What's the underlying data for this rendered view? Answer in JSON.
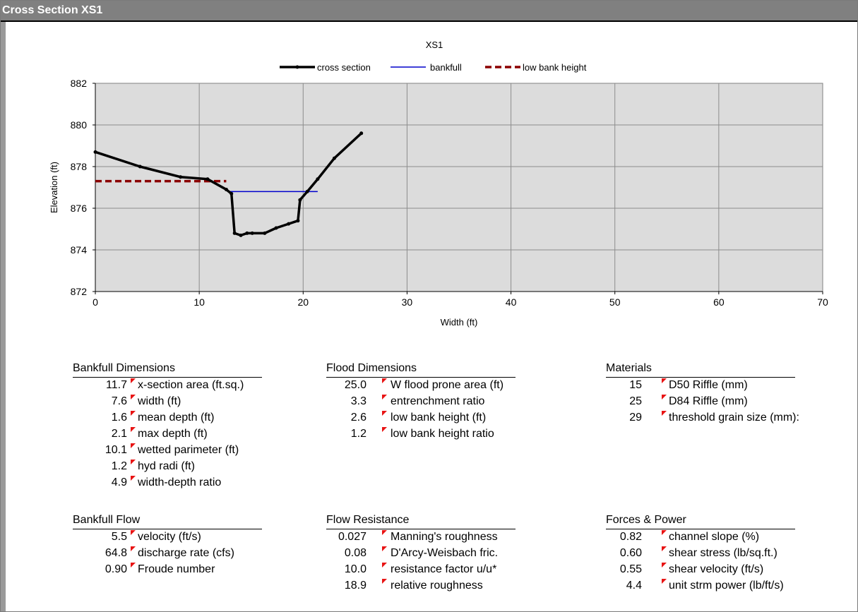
{
  "window": {
    "title": "Cross Section  XS1"
  },
  "chart_data": {
    "type": "line",
    "title": "XS1",
    "xlabel": "Width (ft)",
    "ylabel": "Elevation (ft)",
    "xlim": [
      0,
      70
    ],
    "ylim": [
      872,
      882
    ],
    "xticks": [
      0,
      10,
      20,
      30,
      40,
      50,
      60,
      70
    ],
    "yticks": [
      872,
      874,
      876,
      878,
      880,
      882
    ],
    "grid": true,
    "legend_position": "top",
    "plot_background": "#dcdcdc",
    "series": [
      {
        "name": "cross section",
        "color": "#000000",
        "style": "solid-markers",
        "x": [
          0,
          4.3,
          8.2,
          10.8,
          12.6,
          13.1,
          13.4,
          14.0,
          14.6,
          15.1,
          16.3,
          17.4,
          18.6,
          19.5,
          19.7,
          20.4,
          21.4,
          23.0,
          25.6
        ],
        "y": [
          878.7,
          878.0,
          877.5,
          877.4,
          876.9,
          876.7,
          874.8,
          874.7,
          874.8,
          874.8,
          874.8,
          875.05,
          875.25,
          875.4,
          876.4,
          876.8,
          877.4,
          878.4,
          879.6
        ]
      },
      {
        "name": "bankfull",
        "color": "#0000cc",
        "style": "solid",
        "x": [
          12.9,
          21.4
        ],
        "y": [
          876.8,
          876.8
        ]
      },
      {
        "name": "low bank height",
        "color": "#8b0000",
        "style": "dashed",
        "x": [
          0,
          12.6
        ],
        "y": [
          877.3,
          877.3
        ]
      }
    ]
  },
  "tables": [
    {
      "heading": "Bankfull Dimensions",
      "rows": [
        {
          "value": "11.7",
          "label": "x-section area (ft.sq.)"
        },
        {
          "value": "7.6",
          "label": "width (ft)"
        },
        {
          "value": "1.6",
          "label": "mean depth (ft)"
        },
        {
          "value": "2.1",
          "label": "max depth (ft)"
        },
        {
          "value": "10.1",
          "label": "wetted parimeter (ft)"
        },
        {
          "value": "1.2",
          "label": "hyd radi (ft)"
        },
        {
          "value": "4.9",
          "label": "width-depth ratio"
        }
      ]
    },
    {
      "heading": "Flood Dimensions",
      "rows": [
        {
          "value": "25.0",
          "label": "W flood prone area (ft)"
        },
        {
          "value": "3.3",
          "label": "entrenchment ratio"
        },
        {
          "value": "2.6",
          "label": "low bank height (ft)"
        },
        {
          "value": "1.2",
          "label": "low bank height ratio"
        }
      ]
    },
    {
      "heading": "Materials",
      "rows": [
        {
          "value": "15",
          "label": "D50 Riffle (mm)"
        },
        {
          "value": "25",
          "label": "D84 Riffle (mm)"
        },
        {
          "value": "29",
          "label": "threshold grain size (mm):"
        }
      ]
    },
    {
      "heading": "Bankfull Flow",
      "rows": [
        {
          "value": "5.5",
          "label": "velocity (ft/s)"
        },
        {
          "value": "64.8",
          "label": "discharge rate (cfs)"
        },
        {
          "value": "0.90",
          "label": "Froude number"
        }
      ]
    },
    {
      "heading": "Flow Resistance",
      "rows": [
        {
          "value": "0.027",
          "label": "Manning's roughness"
        },
        {
          "value": "0.08",
          "label": "D'Arcy-Weisbach fric."
        },
        {
          "value": "10.0",
          "label": "resistance factor u/u*"
        },
        {
          "value": "18.9",
          "label": "relative roughness"
        }
      ]
    },
    {
      "heading": "Forces & Power",
      "rows": [
        {
          "value": "0.82",
          "label": "channel slope (%)"
        },
        {
          "value": "0.60",
          "label": "shear stress (lb/sq.ft.)"
        },
        {
          "value": "0.55",
          "label": "shear velocity (ft/s)"
        },
        {
          "value": "4.4",
          "label": "unit strm power (lb/ft/s)"
        }
      ]
    }
  ]
}
